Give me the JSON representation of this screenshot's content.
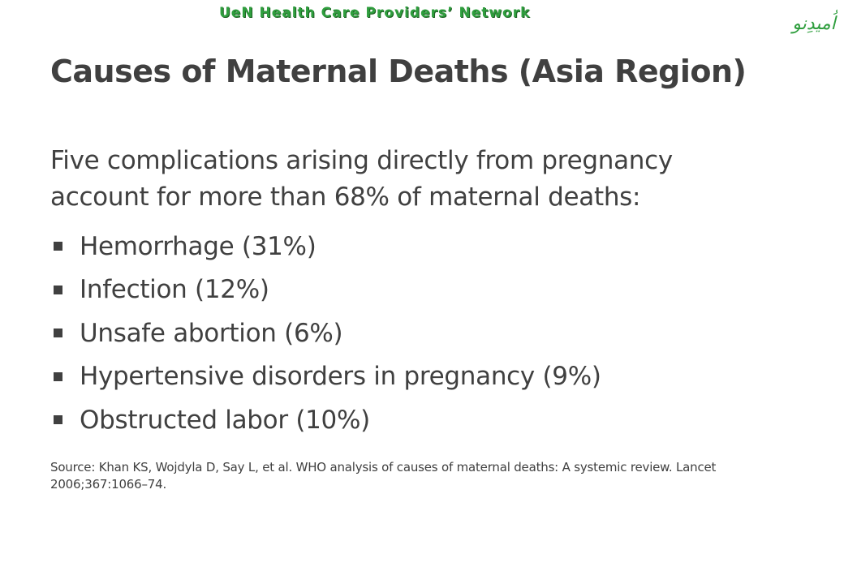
{
  "header": {
    "network_name": "UeN Health Care Providers’ Network",
    "logo_text": "اُمیدِنو",
    "logo_color": "#2f9e3e"
  },
  "slide": {
    "title": "Causes of Maternal Deaths (Asia Region)",
    "intro": "Five complications arising directly from pregnancy account for more than 68% of maternal deaths:",
    "bullets": [
      {
        "label": "Hemorrhage (31%)"
      },
      {
        "label": "Infection (12%)"
      },
      {
        "label": "Unsafe abortion (6%)"
      },
      {
        "label": "Hypertensive disorders in pregnancy (9%)"
      },
      {
        "label": "Obstructed labor (10%)"
      }
    ],
    "source": "Source: Khan KS, Wojdyla D, Say L, et al. WHO analysis of causes of maternal deaths: A systemic review. Lancet 2006;367:1066–74."
  },
  "colors": {
    "text": "#404040",
    "brand_green": "#2f9e3e",
    "background": "#ffffff"
  }
}
